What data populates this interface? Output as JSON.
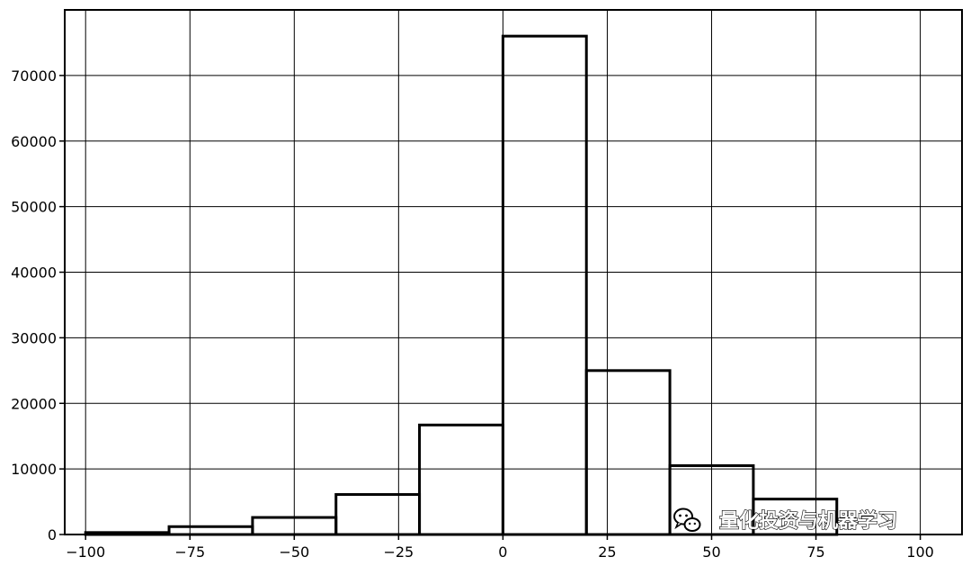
{
  "chart_data": {
    "type": "bar",
    "title": "",
    "xlabel": "",
    "ylabel": "",
    "bins": [
      {
        "x0": -100,
        "x1": -80,
        "value": 300
      },
      {
        "x0": -80,
        "x1": -60,
        "value": 1200
      },
      {
        "x0": -60,
        "x1": -40,
        "value": 2600
      },
      {
        "x0": -40,
        "x1": -20,
        "value": 6100
      },
      {
        "x0": -20,
        "x1": 0,
        "value": 16700
      },
      {
        "x0": 0,
        "x1": 20,
        "value": 76000
      },
      {
        "x0": 20,
        "x1": 40,
        "value": 25000
      },
      {
        "x0": 40,
        "x1": 60,
        "value": 10500
      },
      {
        "x0": 60,
        "x1": 80,
        "value": 5400
      }
    ],
    "xlim": [
      -105,
      110
    ],
    "ylim": [
      0,
      80000
    ],
    "xticks": [
      -100,
      -75,
      -50,
      -25,
      0,
      25,
      50,
      75,
      100
    ],
    "xtick_labels": [
      "−100",
      "−75",
      "−50",
      "−25",
      "0",
      "25",
      "50",
      "75",
      "100"
    ],
    "yticks": [
      0,
      10000,
      20000,
      30000,
      40000,
      50000,
      60000,
      70000
    ],
    "ytick_labels": [
      "0",
      "10000",
      "20000",
      "30000",
      "40000",
      "50000",
      "60000",
      "70000"
    ],
    "grid": true,
    "legend": "none",
    "colors": {
      "bar_edge": "#000000",
      "bar_fill": "#ffffff",
      "grid": "#000000",
      "axes": "#000000"
    }
  },
  "watermark": {
    "icon": "wechat-icon",
    "text": "量化投资与机器学习"
  }
}
